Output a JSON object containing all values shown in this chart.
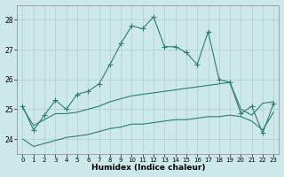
{
  "x": [
    0,
    1,
    2,
    3,
    4,
    5,
    6,
    7,
    8,
    9,
    10,
    11,
    12,
    13,
    14,
    15,
    16,
    17,
    18,
    19,
    20,
    21,
    22,
    23
  ],
  "line_main": [
    25.1,
    24.3,
    24.8,
    25.3,
    25.0,
    25.5,
    25.6,
    25.85,
    26.5,
    27.2,
    27.8,
    27.7,
    28.1,
    27.1,
    27.1,
    26.9,
    26.5,
    27.6,
    26.0,
    25.9,
    24.85,
    25.1,
    24.2,
    25.2
  ],
  "line_upper": [
    25.05,
    24.45,
    24.65,
    24.85,
    24.85,
    24.9,
    25.0,
    25.1,
    25.25,
    25.35,
    25.45,
    25.5,
    25.55,
    25.6,
    25.65,
    25.7,
    25.75,
    25.8,
    25.85,
    25.9,
    25.0,
    24.8,
    25.2,
    25.25
  ],
  "line_lower": [
    24.0,
    23.75,
    23.85,
    23.95,
    24.05,
    24.1,
    24.15,
    24.25,
    24.35,
    24.4,
    24.5,
    24.5,
    24.55,
    24.6,
    24.65,
    24.65,
    24.7,
    24.75,
    24.75,
    24.8,
    24.75,
    24.6,
    24.3,
    24.9
  ],
  "color": "#2d7d6e",
  "bg_color": "#cce8e8",
  "grid_color": "#aacfcf",
  "xlabel": "Humidex (Indice chaleur)",
  "ylim": [
    23.5,
    28.5
  ],
  "xlim": [
    -0.5,
    23.5
  ],
  "yticks": [
    24,
    25,
    26,
    27,
    28
  ],
  "xticks": [
    0,
    1,
    2,
    3,
    4,
    5,
    6,
    7,
    8,
    9,
    10,
    11,
    12,
    13,
    14,
    15,
    16,
    17,
    18,
    19,
    20,
    21,
    22,
    23
  ],
  "markersize": 2.5,
  "linewidth": 0.8
}
